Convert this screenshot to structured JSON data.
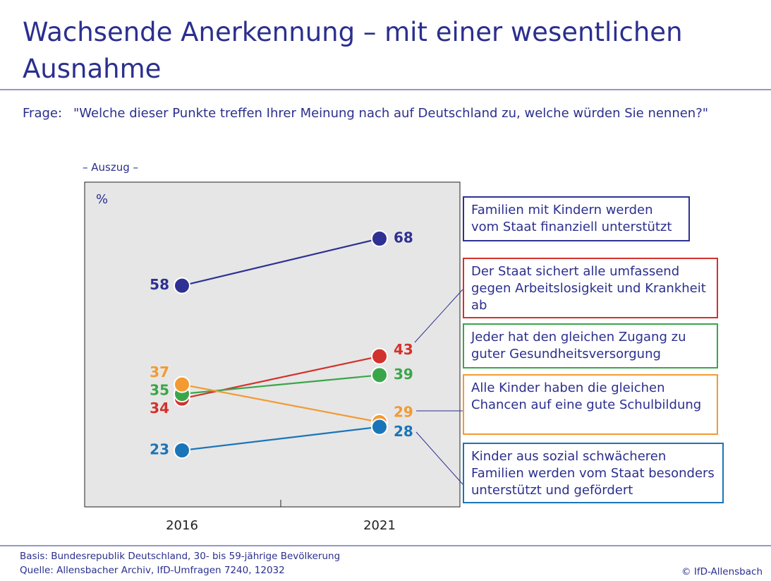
{
  "title": "Wachsende Anerkennung – mit einer wesentlichen Ausnahme",
  "question_label": "Frage:",
  "question": "\"Welche dieser Punkte treffen Ihrer Meinung nach auf Deutschland zu, welche würden Sie nennen?\"",
  "subtitle": "– Auszug –",
  "footer": {
    "basis": "Basis: Bundesrepublik Deutschland, 30- bis 59-jährige Bevölkerung",
    "source": "Quelle: Allensbacher Archiv, IfD-Umfragen 7240, 12032",
    "copyright": "© IfD-Allensbach"
  },
  "chart_data": {
    "type": "line",
    "y_label": "%",
    "categories": [
      "2016",
      "2021"
    ],
    "ylim": [
      11,
      80
    ],
    "series": [
      {
        "name": "Familien mit Kindern werden vom Staat finanziell unterstützt",
        "color": "#2e3192",
        "values": [
          58,
          68
        ]
      },
      {
        "name": "Der Staat sichert alle umfassend gegen Arbeitslosigkeit und Krankheit ab",
        "color": "#d2322d",
        "values": [
          34,
          43
        ]
      },
      {
        "name": "Jeder hat den gleichen Zugang zu guter Gesundheitsversorgung",
        "color": "#3aa64a",
        "values": [
          35,
          39
        ]
      },
      {
        "name": "Alle Kinder haben die gleichen Chancen auf eine gute Schulbildung",
        "color": "#f39a32",
        "values": [
          37,
          29
        ]
      },
      {
        "name": "Kinder aus sozial schwächeren Familien werden vom Staat besonders unterstützt und gefördert",
        "color": "#1a75b8",
        "values": [
          23,
          28
        ]
      }
    ]
  }
}
